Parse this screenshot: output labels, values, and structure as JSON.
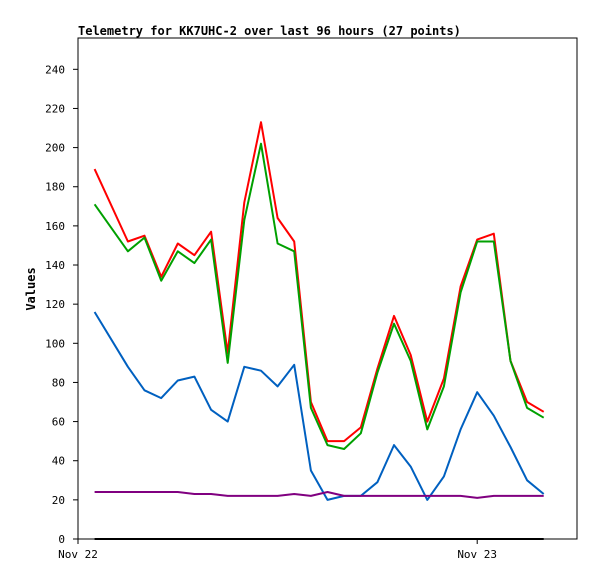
{
  "chart_data": {
    "type": "line",
    "title": "Telemetry for KK7UHC-2 over last 96 hours (27 points)",
    "xlabel": "",
    "ylabel": "Values",
    "ylim": [
      0,
      256
    ],
    "yticks": [
      0,
      20,
      40,
      60,
      80,
      100,
      120,
      140,
      160,
      180,
      200,
      220,
      240
    ],
    "xlim": [
      0,
      30
    ],
    "xticks": [
      {
        "label": "Nov 22",
        "x": 0
      },
      {
        "label": "Nov 23",
        "x": 24
      }
    ],
    "x": [
      1,
      3,
      4,
      5,
      6,
      7,
      8,
      9,
      10,
      11,
      12,
      13,
      14,
      15,
      16,
      17,
      18,
      19,
      20,
      21,
      22,
      23,
      24,
      25,
      26,
      27,
      28
    ],
    "grid": false,
    "legend": "none",
    "series": [
      {
        "color": "#ff0000",
        "values": [
          189,
          152,
          155,
          134,
          151,
          145,
          157,
          95,
          172,
          213,
          164,
          152,
          70,
          50,
          50,
          57,
          87,
          114,
          94,
          60,
          82,
          129,
          153,
          156,
          91,
          70,
          65
        ]
      },
      {
        "color": "#00a000",
        "values": [
          171,
          147,
          154,
          132,
          147,
          141,
          153,
          90,
          163,
          202,
          151,
          147,
          67,
          48,
          46,
          54,
          85,
          110,
          91,
          56,
          78,
          126,
          152,
          152,
          91,
          67,
          62
        ]
      },
      {
        "color": "#0060c0",
        "values": [
          116,
          88,
          76,
          72,
          81,
          83,
          66,
          60,
          88,
          86,
          78,
          89,
          35,
          20,
          22,
          22,
          29,
          48,
          37,
          20,
          32,
          56,
          75,
          63,
          47,
          30,
          23
        ]
      },
      {
        "color": "#800080",
        "values": [
          24,
          24,
          24,
          24,
          24,
          23,
          23,
          22,
          22,
          22,
          22,
          23,
          22,
          24,
          22,
          22,
          22,
          22,
          22,
          22,
          22,
          22,
          21,
          22,
          22,
          22,
          22
        ]
      },
      {
        "color": "#000000",
        "values": [
          0,
          0,
          0,
          0,
          0,
          0,
          0,
          0,
          0,
          0,
          0,
          0,
          0,
          0,
          0,
          0,
          0,
          0,
          0,
          0,
          0,
          0,
          0,
          0,
          0,
          0,
          0
        ]
      }
    ]
  }
}
